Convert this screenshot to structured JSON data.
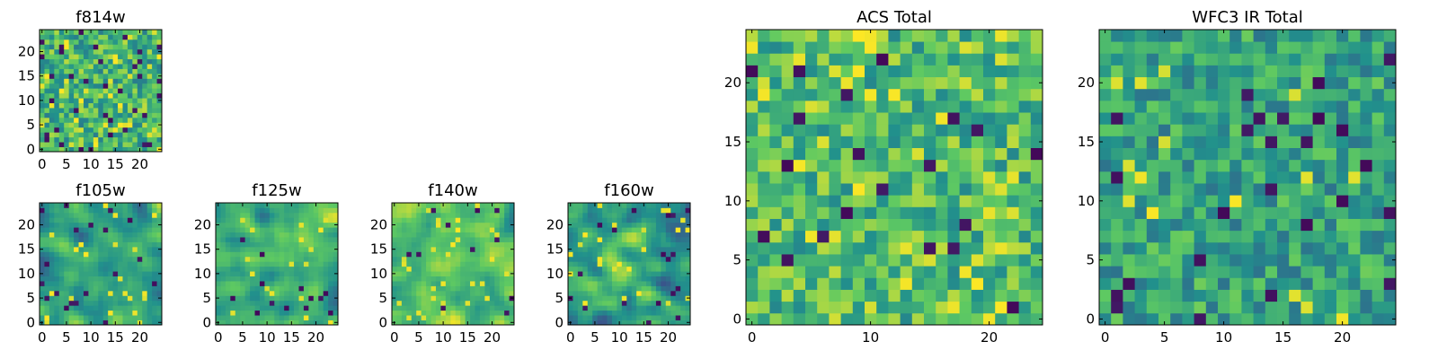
{
  "palette": {
    "name": "viridis",
    "stops": [
      "#440154",
      "#3b528b",
      "#21918c",
      "#5ec962",
      "#fde725"
    ]
  },
  "chart_data": [
    {
      "id": "f814w",
      "type": "heatmap",
      "title": "f814w",
      "grid_size": [
        25,
        25
      ],
      "xlim": [
        0,
        24
      ],
      "ylim": [
        0,
        24
      ],
      "xticks": [
        "0",
        "5",
        "10",
        "15",
        "20"
      ],
      "yticks": [
        "0",
        "5",
        "10",
        "15",
        "20"
      ],
      "pattern": {
        "kind": "noise",
        "seed": 11,
        "base": 0.66,
        "spread": 0.24,
        "dark_frac": 0.05,
        "bright_frac": 0.06,
        "smooth": 0
      }
    },
    {
      "id": "f105w",
      "type": "heatmap",
      "title": "f105w",
      "grid_size": [
        25,
        25
      ],
      "xlim": [
        0,
        24
      ],
      "ylim": [
        0,
        24
      ],
      "xticks": [
        "0",
        "5",
        "10",
        "15",
        "20"
      ],
      "yticks": [
        "0",
        "5",
        "10",
        "15",
        "20"
      ],
      "pattern": {
        "kind": "smooth",
        "seed": 23,
        "base": 0.6,
        "spread": 0.3,
        "dark_frac": 0.03,
        "bright_frac": 0.03,
        "smooth": 2
      }
    },
    {
      "id": "f125w",
      "type": "heatmap",
      "title": "f125w",
      "grid_size": [
        25,
        25
      ],
      "xlim": [
        0,
        24
      ],
      "ylim": [
        0,
        24
      ],
      "xticks": [
        "0",
        "5",
        "10",
        "15",
        "20"
      ],
      "yticks": [
        "0",
        "5",
        "10",
        "15",
        "20"
      ],
      "pattern": {
        "kind": "smooth",
        "seed": 37,
        "base": 0.65,
        "spread": 0.3,
        "dark_frac": 0.03,
        "bright_frac": 0.04,
        "smooth": 2
      }
    },
    {
      "id": "f140w",
      "type": "heatmap",
      "title": "f140w",
      "grid_size": [
        25,
        25
      ],
      "xlim": [
        0,
        24
      ],
      "ylim": [
        0,
        24
      ],
      "xticks": [
        "0",
        "5",
        "10",
        "15",
        "20"
      ],
      "yticks": [
        "0",
        "5",
        "10",
        "15",
        "20"
      ],
      "pattern": {
        "kind": "smooth",
        "seed": 53,
        "base": 0.7,
        "spread": 0.28,
        "dark_frac": 0.02,
        "bright_frac": 0.05,
        "smooth": 2
      }
    },
    {
      "id": "f160w",
      "type": "heatmap",
      "title": "f160w",
      "grid_size": [
        25,
        25
      ],
      "xlim": [
        0,
        24
      ],
      "ylim": [
        0,
        24
      ],
      "xticks": [
        "0",
        "5",
        "10",
        "15",
        "20"
      ],
      "yticks": [
        "0",
        "5",
        "10",
        "15",
        "20"
      ],
      "pattern": {
        "kind": "smooth",
        "seed": 71,
        "base": 0.58,
        "spread": 0.32,
        "dark_frac": 0.04,
        "bright_frac": 0.03,
        "smooth": 2
      }
    },
    {
      "id": "acs_total",
      "type": "heatmap",
      "title": "ACS Total",
      "grid_size": [
        25,
        25
      ],
      "xlim": [
        0,
        24
      ],
      "ylim": [
        0,
        24
      ],
      "xticks": [
        "0",
        "10",
        "20"
      ],
      "yticks": [
        "0",
        "5",
        "10",
        "15",
        "20"
      ],
      "pattern": {
        "kind": "noise",
        "seed": 97,
        "base": 0.68,
        "spread": 0.22,
        "dark_frac": 0.03,
        "bright_frac": 0.07,
        "smooth": 0
      }
    },
    {
      "id": "wfc3_ir_total",
      "type": "heatmap",
      "title": "WFC3 IR Total",
      "grid_size": [
        25,
        25
      ],
      "xlim": [
        0,
        24
      ],
      "ylim": [
        0,
        24
      ],
      "xticks": [
        "0",
        "5",
        "10",
        "15",
        "20"
      ],
      "yticks": [
        "0",
        "5",
        "10",
        "15",
        "20"
      ],
      "pattern": {
        "kind": "noise",
        "seed": 131,
        "base": 0.58,
        "spread": 0.2,
        "dark_frac": 0.05,
        "bright_frac": 0.03,
        "smooth": 0
      }
    }
  ]
}
